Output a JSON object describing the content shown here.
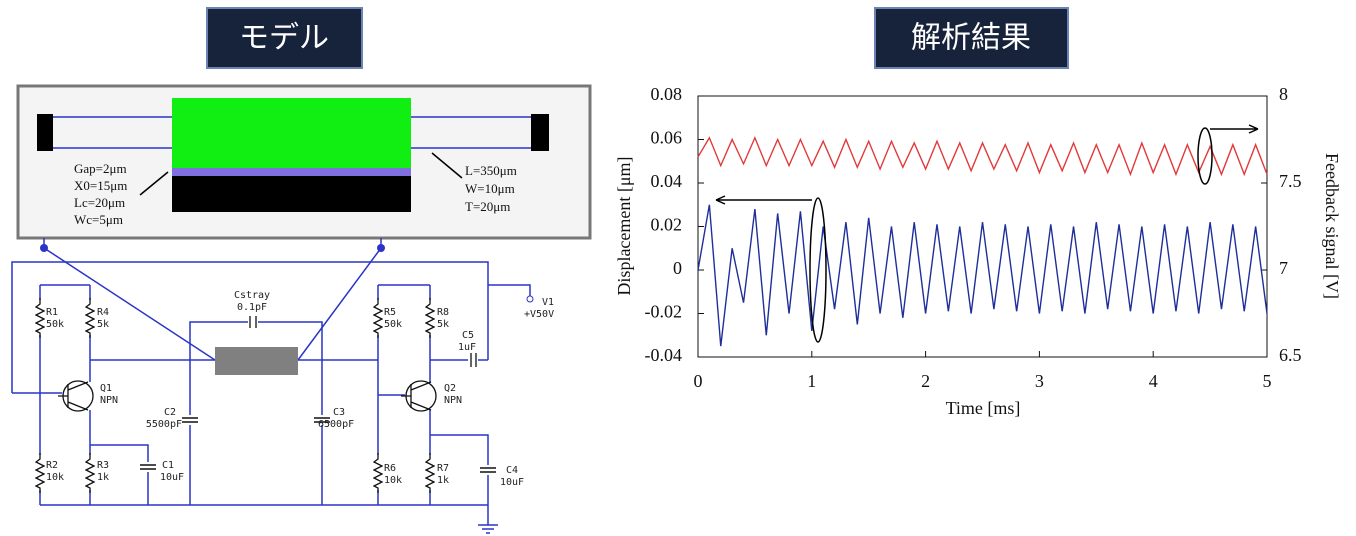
{
  "model": {
    "title": "モデル",
    "params": [
      "Gap=2μm",
      "X0=15μm",
      "Lc=20μm",
      "Wc=5μm",
      "L=350μm",
      "W=10μm",
      "T=20μm"
    ],
    "parts": [
      {
        "name": "Cstray",
        "value": "0.1pF"
      },
      {
        "name": "R1",
        "value": "50k"
      },
      {
        "name": "R4",
        "value": "5k"
      },
      {
        "name": "Q1",
        "value": "NPN"
      },
      {
        "name": "R2",
        "value": "10k"
      },
      {
        "name": "R3",
        "value": "1k"
      },
      {
        "name": "C1",
        "value": "10uF"
      },
      {
        "name": "C2",
        "value": "5500pF"
      },
      {
        "name": "C3",
        "value": "6500pF"
      },
      {
        "name": "R5",
        "value": "50k"
      },
      {
        "name": "R8",
        "value": "5k"
      },
      {
        "name": "C5",
        "value": "1uF"
      },
      {
        "name": "V1",
        "value": "+V50V"
      },
      {
        "name": "Q2",
        "value": "NPN"
      },
      {
        "name": "R6",
        "value": "10k"
      },
      {
        "name": "R7",
        "value": "1k"
      },
      {
        "name": "C4",
        "value": "10uF"
      }
    ]
  },
  "chart_data": {
    "type": "line",
    "title": "解析結果",
    "x_label": "Time [ms]",
    "y_label": "Displacement [μm]",
    "y2_label": "Feedback  signal [V]",
    "x": [
      0,
      0.1,
      0.2,
      0.3,
      0.4,
      0.5,
      0.6,
      0.7,
      0.8,
      0.9,
      1,
      1.1,
      1.2,
      1.3,
      1.4,
      1.5,
      1.6,
      1.7,
      1.8,
      1.9,
      2,
      2.1,
      2.2,
      2.3,
      2.4,
      2.5,
      2.6,
      2.7,
      2.8,
      2.9,
      3,
      3.1,
      3.2,
      3.3,
      3.4,
      3.5,
      3.6,
      3.7,
      3.8,
      3.9,
      4,
      4.1,
      4.2,
      4.3,
      4.4,
      4.5,
      4.6,
      4.7,
      4.8,
      4.9,
      5
    ],
    "series": [
      {
        "color": "#1f2f9a",
        "values": [
          0,
          0.03,
          -0.035,
          0.01,
          -0.015,
          0.028,
          -0.03,
          0.026,
          -0.02,
          0.027,
          -0.028,
          0.02,
          -0.018,
          0.022,
          -0.025,
          0.024,
          -0.02,
          0.02,
          -0.022,
          0.022,
          -0.02,
          0.021,
          -0.019,
          0.02,
          -0.02,
          0.022,
          -0.018,
          0.021,
          -0.019,
          0.02,
          -0.02,
          0.021,
          -0.019,
          0.02,
          -0.02,
          0.022,
          -0.018,
          0.021,
          -0.019,
          0.02,
          -0.02,
          0.021,
          -0.019,
          0.02,
          -0.02,
          0.022,
          -0.018,
          0.021,
          -0.019,
          0.02,
          -0.02
        ]
      },
      {
        "color": "#e23a3a",
        "axis": "y2",
        "values": [
          7.65,
          7.76,
          7.6,
          7.75,
          7.61,
          7.76,
          7.6,
          7.75,
          7.6,
          7.75,
          7.6,
          7.74,
          7.59,
          7.75,
          7.59,
          7.74,
          7.58,
          7.74,
          7.59,
          7.73,
          7.58,
          7.74,
          7.58,
          7.73,
          7.57,
          7.73,
          7.58,
          7.72,
          7.57,
          7.73,
          7.56,
          7.72,
          7.57,
          7.73,
          7.56,
          7.72,
          7.56,
          7.72,
          7.55,
          7.73,
          7.56,
          7.72,
          7.55,
          7.72,
          7.56,
          7.71,
          7.55,
          7.72,
          7.55,
          7.72,
          7.55
        ]
      }
    ],
    "xlim": [
      0,
      5
    ],
    "xticks": [
      0,
      1,
      2,
      3,
      4,
      5
    ],
    "ylim": [
      -0.04,
      0.08
    ],
    "yticks": [
      -0.04,
      -0.02,
      0,
      0.02,
      0.04,
      0.06,
      0.08
    ],
    "y2lim": [
      6.5,
      8
    ],
    "y2ticks": [
      6.5,
      7,
      7.5,
      8
    ]
  }
}
